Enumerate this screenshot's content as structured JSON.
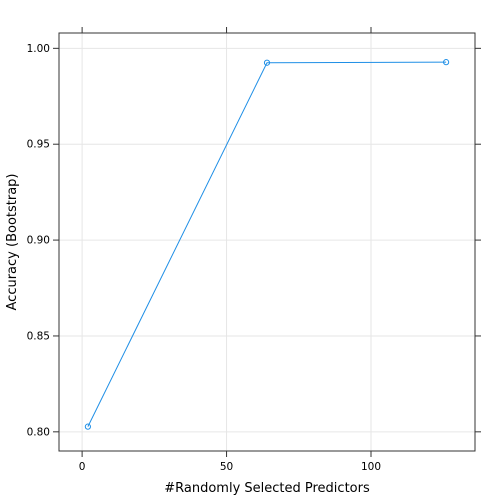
{
  "chart_data": {
    "type": "line",
    "title": "",
    "xlabel": "#Randomly Selected Predictors",
    "ylabel": "Accuracy (Bootstrap)",
    "xlim": [
      -8,
      136
    ],
    "ylim": [
      0.79,
      1.008
    ],
    "x_ticks": [
      0,
      50,
      100
    ],
    "x_tick_labels": [
      "0",
      "50",
      "100"
    ],
    "y_ticks": [
      0.8,
      0.85,
      0.9,
      0.95,
      1.0
    ],
    "y_tick_labels": [
      "0.80",
      "0.85",
      "0.90",
      "0.95",
      "1.00"
    ],
    "grid": true,
    "series": [
      {
        "color": "#1f8fe6",
        "x": [
          2,
          64,
          126
        ],
        "y": [
          0.8027,
          0.9925,
          0.9928
        ]
      }
    ]
  }
}
